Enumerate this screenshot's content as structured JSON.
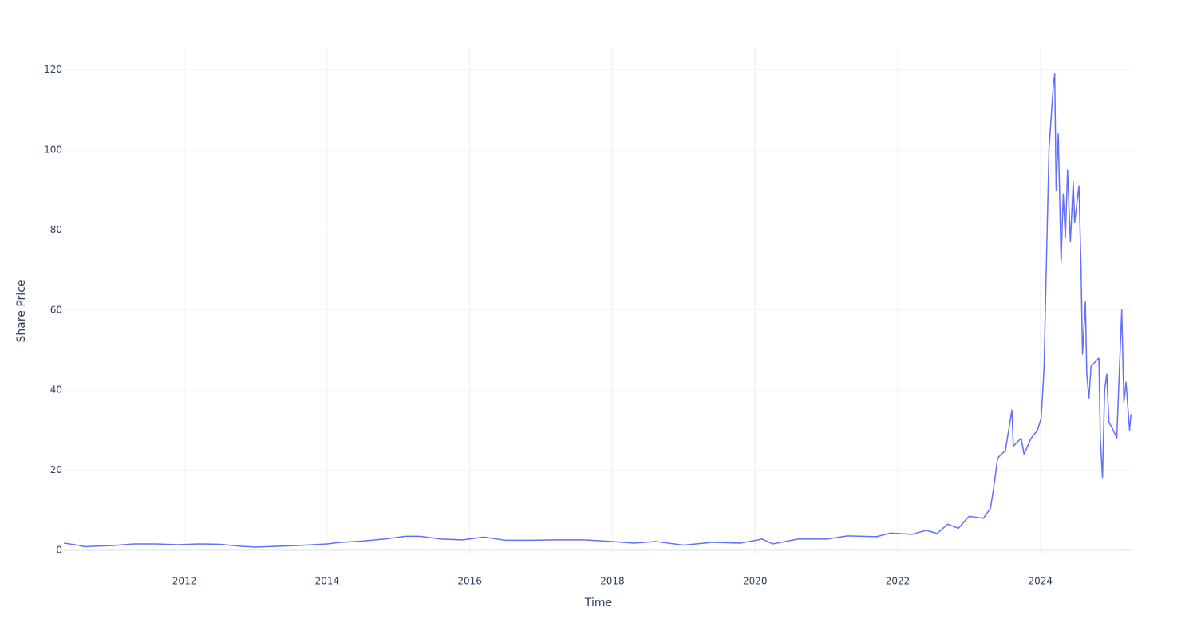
{
  "chart_data": {
    "type": "line",
    "xlabel": "Time",
    "ylabel": "Share Price",
    "x": [
      2010.31,
      2010.5,
      2010.6,
      2011.0,
      2011.3,
      2011.6,
      2011.9,
      2012.2,
      2012.5,
      2012.8,
      2013.0,
      2013.3,
      2013.6,
      2014.0,
      2014.2,
      2014.5,
      2014.8,
      2015.1,
      2015.3,
      2015.6,
      2015.9,
      2016.2,
      2016.5,
      2016.9,
      2017.2,
      2017.6,
      2018.0,
      2018.3,
      2018.6,
      2019.0,
      2019.4,
      2019.8,
      2020.1,
      2020.25,
      2020.6,
      2021.0,
      2021.3,
      2021.7,
      2021.9,
      2022.2,
      2022.4,
      2022.55,
      2022.7,
      2022.85,
      2023.0,
      2023.2,
      2023.3,
      2023.34,
      2023.4,
      2023.51,
      2023.6,
      2023.62,
      2023.73,
      2023.77,
      2023.87,
      2023.96,
      2024.01,
      2024.05,
      2024.12,
      2024.18,
      2024.2,
      2024.22,
      2024.25,
      2024.29,
      2024.32,
      2024.35,
      2024.38,
      2024.42,
      2024.46,
      2024.48,
      2024.54,
      2024.57,
      2024.59,
      2024.63,
      2024.65,
      2024.68,
      2024.71,
      2024.82,
      2024.84,
      2024.87,
      2024.9,
      2024.93,
      2024.96,
      2025.02,
      2025.07,
      2025.14,
      2025.17,
      2025.2,
      2025.25,
      2025.27
    ],
    "values": [
      1.8,
      1.3,
      0.9,
      1.2,
      1.6,
      1.6,
      1.4,
      1.6,
      1.5,
      1.0,
      0.8,
      1.0,
      1.2,
      1.6,
      2.0,
      2.3,
      2.8,
      3.5,
      3.5,
      2.8,
      2.6,
      3.3,
      2.5,
      2.5,
      2.6,
      2.6,
      2.2,
      1.8,
      2.2,
      1.3,
      2.0,
      1.8,
      2.8,
      1.6,
      2.8,
      2.8,
      3.6,
      3.4,
      4.3,
      4.0,
      5.0,
      4.2,
      6.5,
      5.5,
      8.5,
      8.0,
      10.5,
      15,
      23,
      25,
      35,
      26,
      28,
      24,
      28,
      30,
      33,
      45,
      100,
      116,
      119,
      90,
      104,
      72,
      89,
      78,
      95,
      77,
      92,
      82,
      91,
      70,
      49,
      62,
      44,
      38,
      46,
      48,
      28,
      18,
      40,
      44,
      32,
      30,
      28,
      60,
      37,
      42,
      30,
      34
    ],
    "color": "#636efa",
    "xlim": [
      2010.31,
      2025.3
    ],
    "xticks": [
      2012,
      2014,
      2016,
      2018,
      2020,
      2022,
      2024
    ],
    "ylim": [
      -1,
      125.5
    ],
    "yticks": [
      0,
      20,
      40,
      60,
      80,
      100,
      120
    ],
    "grid": true
  }
}
